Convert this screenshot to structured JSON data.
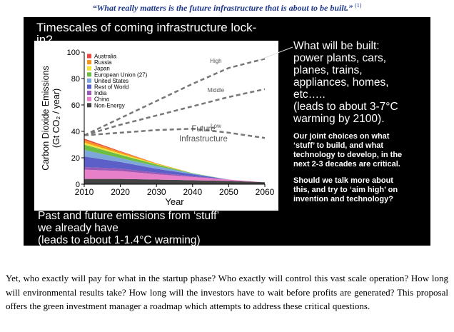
{
  "quote": {
    "text": "“What really matters is the future infrastructure that is about to be built.”",
    "ref": "(1)"
  },
  "slide": {
    "title": "Timescales of coming infrastructure lock-in?",
    "right_blocks": [
      [
        "What will be built:",
        "power plants, cars,",
        "planes, trains,",
        "appliances, homes,",
        "etc…..",
        "(leads to about 3-7°C",
        "warming by 2100)."
      ],
      [
        "Our joint choices on what",
        "‘stuff’ to build, and what",
        "technology to develop, in the",
        "next 2-3 decades are critical."
      ],
      [
        "Should we talk more about",
        "this, and try to ‘aim high’ on",
        "invention and technology?"
      ]
    ],
    "bottom_lines": [
      "Past and future emissions from ‘stuff’",
      "we already have",
      "(leads to about 1-1.4°C warming)"
    ]
  },
  "chart_data": {
    "type": "stacked-area",
    "y_label": [
      "Carbon Dioxide Emissions",
      "(Gt CO₂ / year)"
    ],
    "x_label": "Year",
    "x": [
      2010,
      2020,
      2030,
      2040,
      2050,
      2060
    ],
    "xlim": [
      2010,
      2060
    ],
    "xticks": [
      2010,
      2020,
      2030,
      2040,
      2050,
      2060
    ],
    "ylim": [
      0,
      100
    ],
    "yticks": [
      0,
      20,
      40,
      60,
      80,
      100
    ],
    "series": [
      {
        "name": "Australia",
        "color": "#e8483f",
        "values": [
          1,
          0.5,
          0,
          0,
          0,
          0
        ]
      },
      {
        "name": "Russia",
        "color": "#f7941d",
        "values": [
          2,
          1.2,
          0.5,
          0,
          0,
          0
        ]
      },
      {
        "name": "Japan",
        "color": "#f2e43a",
        "values": [
          1.5,
          1,
          0.5,
          0,
          0,
          0
        ]
      },
      {
        "name": "European Union (27)",
        "color": "#6cbd45",
        "values": [
          4,
          2.5,
          1.2,
          0.3,
          0,
          0
        ]
      },
      {
        "name": "United States",
        "color": "#7da7d9",
        "values": [
          5,
          3,
          2,
          0.5,
          0,
          0
        ]
      },
      {
        "name": "Rest of World",
        "color": "#5b5fc7",
        "values": [
          8,
          5,
          3,
          1.5,
          0,
          0
        ]
      },
      {
        "name": "India",
        "color": "#9b59b6",
        "values": [
          2,
          1.8,
          1.2,
          0.6,
          0,
          0
        ]
      },
      {
        "name": "China",
        "color": "#e87fc9",
        "values": [
          7,
          6,
          4,
          2.5,
          1,
          0
        ]
      },
      {
        "name": "Non-Energy",
        "color": "#444444",
        "values": [
          4,
          4,
          3.5,
          3,
          2.5,
          1.5
        ]
      }
    ],
    "scenario_lines": [
      {
        "name": "High",
        "color": "#777777",
        "values": [
          37,
          50,
          63,
          76,
          88,
          95
        ]
      },
      {
        "name": "Middle",
        "color": "#777777",
        "values": [
          37,
          45,
          52,
          59,
          66,
          72
        ]
      },
      {
        "name": "Low",
        "color": "#777777",
        "values": [
          37,
          39,
          41,
          42,
          39,
          35
        ]
      }
    ],
    "annotation": [
      "Future",
      "Infrastructure"
    ]
  },
  "paragraph": "Yet, who exactly will pay for what in the startup phase? Who exactly will control this vast scale operation? How long will environmental results take? How long will the investors have to wait before profits are generated? This proposal offers the green investment manager a roadmap which attempts to address these critical questions."
}
